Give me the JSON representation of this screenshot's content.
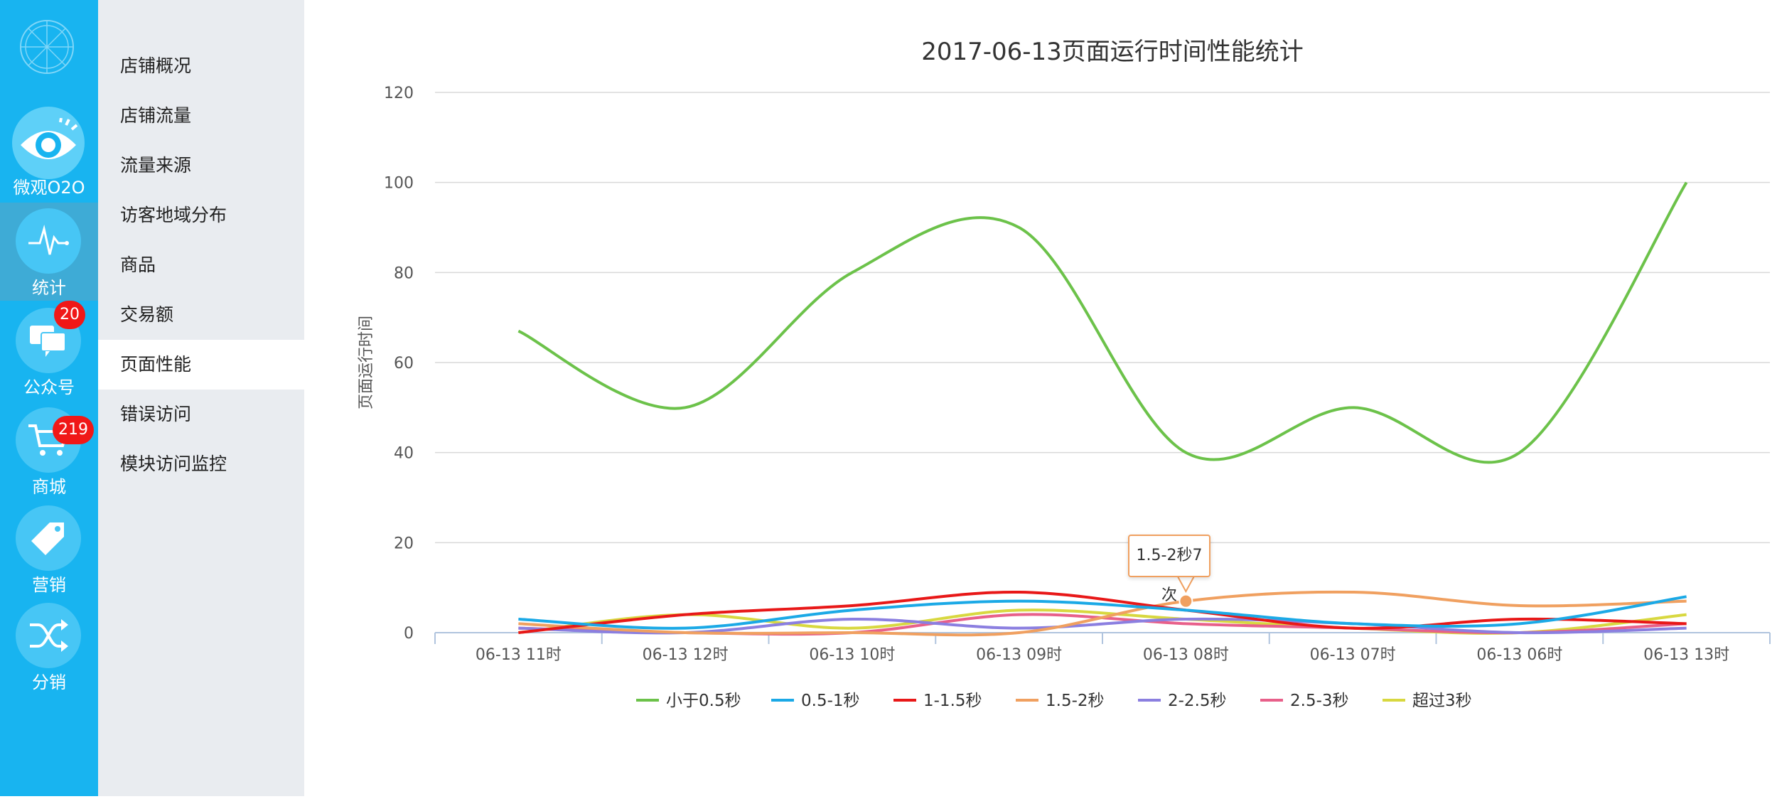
{
  "nav": {
    "items": [
      {
        "label": "微观O2O",
        "icon": "eye-icon",
        "badge": ""
      },
      {
        "label": "统计",
        "icon": "pulse-icon",
        "badge": ""
      },
      {
        "label": "公众号",
        "icon": "chat-icon",
        "badge": "20"
      },
      {
        "label": "商城",
        "icon": "cart-icon",
        "badge": "219"
      },
      {
        "label": "营销",
        "icon": "tag-icon",
        "badge": ""
      },
      {
        "label": "分销",
        "icon": "shuffle-icon",
        "badge": ""
      }
    ],
    "active_index": 1
  },
  "submenu": {
    "items": [
      "店铺概况",
      "店铺流量",
      "流量来源",
      "访客地域分布",
      "商品",
      "交易额",
      "页面性能",
      "错误访问",
      "模块访问监控"
    ],
    "active_index": 6
  },
  "tooltip": {
    "text": "1.5-2秒7次"
  },
  "colors": {
    "sidebar": "#18b4f0",
    "submenu_bg": "#e9ecf0",
    "badge": "#f01818"
  },
  "chart_data": {
    "type": "line",
    "title": "2017-06-13页面运行时间性能统计",
    "ylabel": "页面运行时间",
    "xlabel": "",
    "ylim": [
      0,
      120
    ],
    "yticks": [
      0,
      20,
      40,
      60,
      80,
      100,
      120
    ],
    "categories": [
      "06-13 11时",
      "06-13 12时",
      "06-13 10时",
      "06-13 09时",
      "06-13 08时",
      "06-13 07时",
      "06-13 06时",
      "06-13 13时"
    ],
    "legend_position": "bottom",
    "grid": true,
    "series": [
      {
        "name": "小于0.5秒",
        "color": "#6cc24a",
        "values": [
          67,
          50,
          80,
          90,
          40,
          50,
          40,
          100
        ]
      },
      {
        "name": "0.5-1秒",
        "color": "#1ba9e6",
        "values": [
          3,
          1,
          5,
          7,
          5,
          2,
          2,
          8
        ]
      },
      {
        "name": "1-1.5秒",
        "color": "#e81818",
        "values": [
          0,
          4,
          6,
          9,
          5,
          1,
          3,
          2
        ]
      },
      {
        "name": "1.5-2秒",
        "color": "#f0a060",
        "values": [
          2,
          0,
          0,
          0,
          7,
          9,
          6,
          7
        ]
      },
      {
        "name": "2-2.5秒",
        "color": "#8b7fe0",
        "values": [
          1,
          0,
          3,
          1,
          3,
          2,
          0,
          1
        ]
      },
      {
        "name": "2.5-3秒",
        "color": "#e8608a",
        "values": [
          1,
          0,
          0,
          4,
          2,
          1,
          0,
          2
        ]
      },
      {
        "name": "超过3秒",
        "color": "#d8d840",
        "values": [
          0,
          4,
          1,
          5,
          3,
          1,
          0,
          4
        ]
      }
    ]
  }
}
